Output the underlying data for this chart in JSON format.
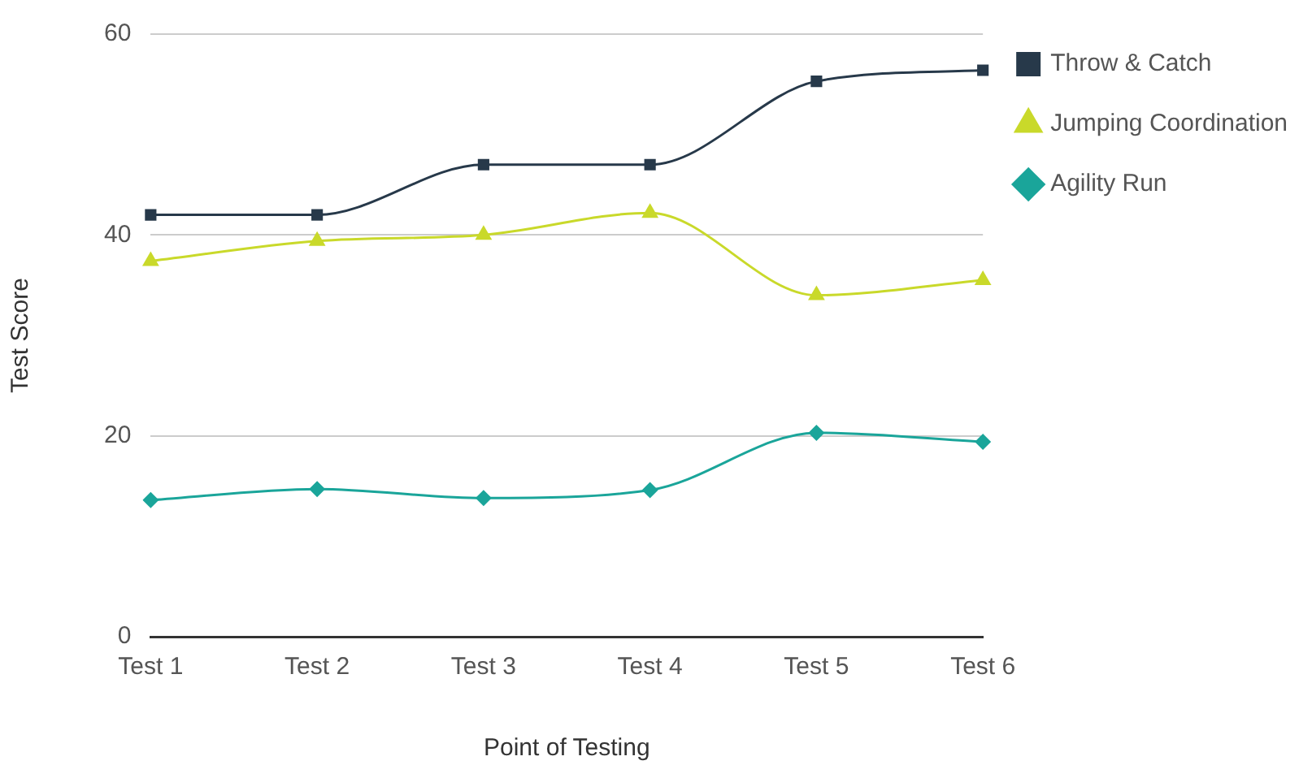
{
  "chart_data": {
    "type": "line",
    "xlabel": "Point of Testing",
    "ylabel": "Test Score",
    "categories": [
      "Test 1",
      "Test 2",
      "Test 3",
      "Test 4",
      "Test 5",
      "Test 6"
    ],
    "series": [
      {
        "name": "Throw & Catch",
        "color": "#27394a",
        "marker": "square",
        "values": [
          42,
          42,
          47,
          47,
          55.3,
          56.4
        ]
      },
      {
        "name": "Jumping Coordination",
        "color": "#c9d92a",
        "marker": "triangle",
        "values": [
          37.4,
          39.4,
          40,
          42.2,
          34,
          35.5
        ]
      },
      {
        "name": "Agility Run",
        "color": "#1aa59a",
        "marker": "diamond",
        "values": [
          13.6,
          14.7,
          13.8,
          14.6,
          20.3,
          19.4
        ]
      }
    ],
    "ylim": [
      0,
      60
    ],
    "yticks": [
      0,
      20,
      40,
      60
    ],
    "grid": "y",
    "legend": "top right"
  }
}
